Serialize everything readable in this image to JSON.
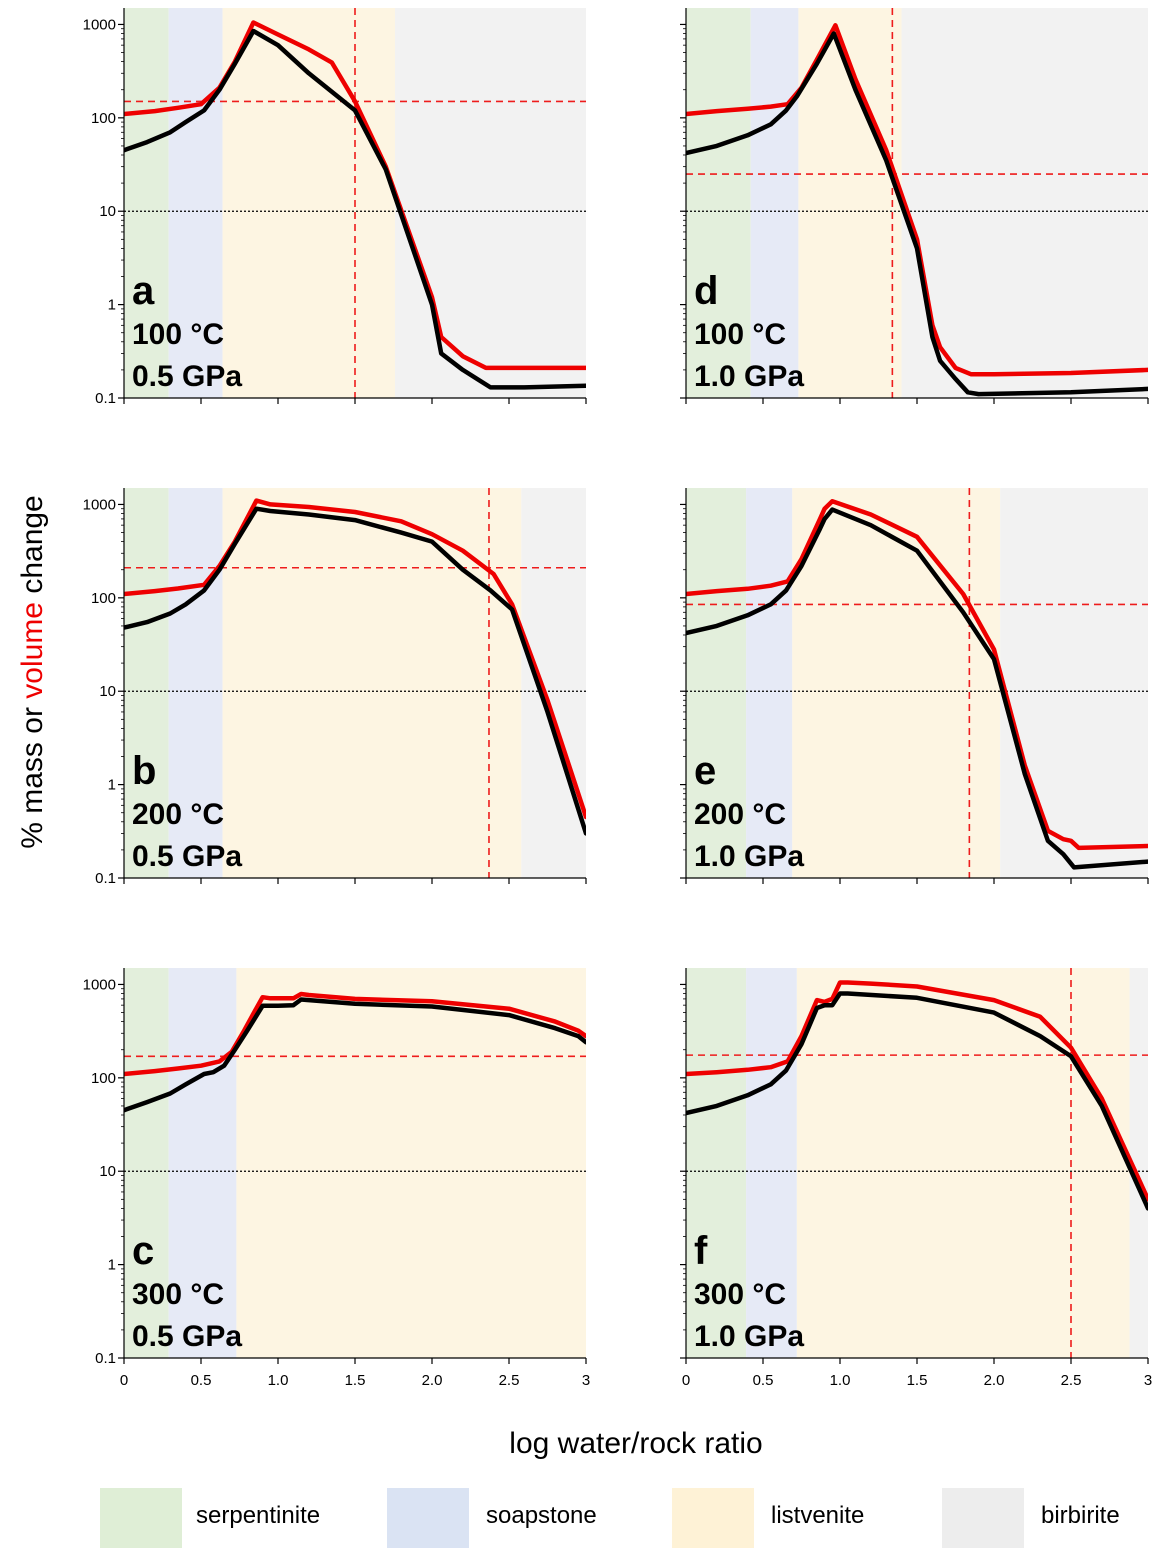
{
  "figure": {
    "y_axis_label": {
      "prefix": "% mass or ",
      "highlight": "volume",
      "suffix": " change"
    },
    "x_axis_label": "log water/rock ratio",
    "colors": {
      "mass": "#000000",
      "volume": "#ee0000",
      "serpentinite": "#e3efdc",
      "soapstone": "#e6eaf6",
      "listvenite": "#fdf5e2",
      "birbirite": "#f2f2f2"
    }
  },
  "legend": [
    {
      "key": "serpentinite",
      "label": "serpentinite",
      "color": "#dfeed6"
    },
    {
      "key": "soapstone",
      "label": "soapstone",
      "color": "#dae3f3"
    },
    {
      "key": "listvenite",
      "label": "listvenite",
      "color": "#fef2d6"
    },
    {
      "key": "birbirite",
      "label": "birbirite",
      "color": "#ededed"
    }
  ],
  "chart_data": [
    {
      "type": "line",
      "panel": "a",
      "temperature": "100 °C",
      "pressure": "0.5 GPa",
      "xlim": [
        0,
        3
      ],
      "ylim": [
        0.1,
        1500
      ],
      "yscale": "log",
      "x_ticks": [
        0,
        0.5,
        1.0,
        1.5,
        2.0,
        2.5,
        3
      ],
      "x_tick_labels_shown": false,
      "y_ticks": [
        0.1,
        1,
        10,
        100,
        1000
      ],
      "y_tick_labels": [
        "0.1",
        "1",
        "10",
        "100",
        "1000"
      ],
      "reference_line_y": 10,
      "zones": [
        {
          "name": "serpentinite",
          "from": 0,
          "to": 0.29
        },
        {
          "name": "soapstone",
          "from": 0.29,
          "to": 0.64
        },
        {
          "name": "listvenite",
          "from": 0.64,
          "to": 1.76
        },
        {
          "name": "birbirite",
          "from": 1.76,
          "to": 3
        }
      ],
      "crosshair": {
        "x": 1.5,
        "y": 150
      },
      "series": [
        {
          "key": "mass",
          "x": [
            0,
            0.15,
            0.3,
            0.4,
            0.52,
            0.62,
            0.72,
            0.84,
            1.0,
            1.2,
            1.5,
            1.7,
            2.0,
            2.06,
            2.2,
            2.38,
            2.6,
            3.0
          ],
          "y": [
            45,
            55,
            70,
            90,
            120,
            200,
            380,
            850,
            600,
            300,
            120,
            28,
            1.0,
            0.3,
            0.2,
            0.13,
            0.13,
            0.135
          ]
        },
        {
          "key": "volume",
          "x": [
            0,
            0.2,
            0.35,
            0.5,
            0.62,
            0.72,
            0.84,
            1.0,
            1.2,
            1.35,
            1.5,
            1.7,
            2.0,
            2.06,
            2.2,
            2.35,
            2.4,
            2.6,
            3.0
          ],
          "y": [
            110,
            118,
            128,
            140,
            210,
            400,
            1050,
            780,
            540,
            390,
            150,
            30,
            1.2,
            0.45,
            0.28,
            0.21,
            0.21,
            0.21,
            0.21
          ]
        }
      ]
    },
    {
      "type": "line",
      "panel": "b",
      "temperature": "200 °C",
      "pressure": "0.5 GPa",
      "xlim": [
        0,
        3
      ],
      "ylim": [
        0.1,
        1500
      ],
      "yscale": "log",
      "x_ticks": [
        0,
        0.5,
        1.0,
        1.5,
        2.0,
        2.5,
        3
      ],
      "x_tick_labels_shown": false,
      "y_ticks": [
        0.1,
        1,
        10,
        100,
        1000
      ],
      "y_tick_labels": [
        "0.1",
        "1",
        "10",
        "100",
        "1000"
      ],
      "reference_line_y": 10,
      "zones": [
        {
          "name": "serpentinite",
          "from": 0,
          "to": 0.29
        },
        {
          "name": "soapstone",
          "from": 0.29,
          "to": 0.64
        },
        {
          "name": "listvenite",
          "from": 0.64,
          "to": 2.58
        },
        {
          "name": "birbirite",
          "from": 2.58,
          "to": 3
        }
      ],
      "crosshair": {
        "x": 2.37,
        "y": 210
      },
      "series": [
        {
          "key": "mass",
          "x": [
            0,
            0.15,
            0.3,
            0.4,
            0.52,
            0.62,
            0.72,
            0.86,
            0.95,
            1.2,
            1.5,
            1.8,
            2.0,
            2.2,
            2.38,
            2.52,
            2.75,
            3.0
          ],
          "y": [
            48,
            55,
            68,
            85,
            120,
            200,
            380,
            900,
            850,
            780,
            680,
            500,
            400,
            200,
            120,
            75,
            6,
            0.3
          ]
        },
        {
          "key": "volume",
          "x": [
            0,
            0.2,
            0.35,
            0.52,
            0.62,
            0.72,
            0.86,
            0.95,
            1.2,
            1.5,
            1.8,
            2.0,
            2.2,
            2.4,
            2.52,
            2.75,
            3.0
          ],
          "y": [
            110,
            118,
            126,
            138,
            220,
            400,
            1100,
            1000,
            940,
            830,
            660,
            480,
            320,
            180,
            85,
            8,
            0.45
          ]
        }
      ]
    },
    {
      "type": "line",
      "panel": "c",
      "temperature": "300 °C",
      "pressure": "0.5 GPa",
      "xlim": [
        0,
        3
      ],
      "ylim": [
        0.1,
        1500
      ],
      "yscale": "log",
      "x_ticks": [
        0,
        0.5,
        1.0,
        1.5,
        2.0,
        2.5,
        3
      ],
      "x_tick_labels": [
        "0",
        "0.5",
        "1.0",
        "1.5",
        "2.0",
        "2.5",
        "3"
      ],
      "y_ticks": [
        0.1,
        1,
        10,
        100,
        1000
      ],
      "y_tick_labels": [
        "0.1",
        "1",
        "10",
        "100",
        "1000"
      ],
      "reference_line_y": 10,
      "zones": [
        {
          "name": "serpentinite",
          "from": 0,
          "to": 0.29
        },
        {
          "name": "soapstone",
          "from": 0.29,
          "to": 0.73
        },
        {
          "name": "listvenite",
          "from": 0.73,
          "to": 3
        }
      ],
      "crosshair": {
        "x": null,
        "y": 170
      },
      "series": [
        {
          "key": "mass",
          "x": [
            0,
            0.15,
            0.3,
            0.4,
            0.52,
            0.58,
            0.65,
            0.72,
            0.8,
            0.9,
            1.0,
            1.1,
            1.15,
            1.2,
            1.5,
            2.0,
            2.5,
            2.8,
            2.95,
            3.0
          ],
          "y": [
            45,
            55,
            68,
            85,
            110,
            115,
            135,
            200,
            320,
            590,
            590,
            600,
            690,
            680,
            620,
            580,
            470,
            340,
            280,
            240
          ]
        },
        {
          "key": "volume",
          "x": [
            0,
            0.2,
            0.35,
            0.5,
            0.62,
            0.7,
            0.78,
            0.85,
            0.9,
            0.95,
            1.1,
            1.15,
            1.2,
            1.5,
            2.0,
            2.5,
            2.8,
            2.95,
            3.0
          ],
          "y": [
            110,
            118,
            126,
            135,
            150,
            190,
            320,
            520,
            730,
            710,
            710,
            790,
            770,
            700,
            660,
            550,
            400,
            320,
            280
          ]
        }
      ]
    },
    {
      "type": "line",
      "panel": "d",
      "temperature": "100 °C",
      "pressure": "1.0 GPa",
      "xlim": [
        0,
        3
      ],
      "ylim": [
        0.1,
        1500
      ],
      "yscale": "log",
      "x_ticks": [
        0,
        0.5,
        1.0,
        1.5,
        2.0,
        2.5,
        3
      ],
      "x_tick_labels_shown": false,
      "y_ticks": [
        0.1,
        1,
        10,
        100,
        1000
      ],
      "y_tick_labels_shown": false,
      "reference_line_y": 10,
      "zones": [
        {
          "name": "serpentinite",
          "from": 0,
          "to": 0.42
        },
        {
          "name": "soapstone",
          "from": 0.42,
          "to": 0.73
        },
        {
          "name": "listvenite",
          "from": 0.73,
          "to": 1.4
        },
        {
          "name": "birbirite",
          "from": 1.4,
          "to": 3
        }
      ],
      "crosshair": {
        "x": 1.34,
        "y": 25
      },
      "series": [
        {
          "key": "mass",
          "x": [
            0,
            0.2,
            0.4,
            0.55,
            0.65,
            0.72,
            0.85,
            0.96,
            1.1,
            1.3,
            1.5,
            1.6,
            1.65,
            1.75,
            1.83,
            1.9,
            2.5,
            3.0
          ],
          "y": [
            42,
            50,
            65,
            85,
            120,
            170,
            380,
            800,
            200,
            35,
            4,
            0.45,
            0.25,
            0.16,
            0.115,
            0.11,
            0.115,
            0.125
          ]
        },
        {
          "key": "volume",
          "x": [
            0,
            0.2,
            0.4,
            0.55,
            0.66,
            0.75,
            0.86,
            0.97,
            1.1,
            1.3,
            1.5,
            1.6,
            1.65,
            1.75,
            1.85,
            2.0,
            2.5,
            3.0
          ],
          "y": [
            110,
            118,
            125,
            132,
            140,
            210,
            450,
            980,
            260,
            45,
            5,
            0.6,
            0.35,
            0.21,
            0.18,
            0.18,
            0.185,
            0.2
          ]
        }
      ]
    },
    {
      "type": "line",
      "panel": "e",
      "temperature": "200 °C",
      "pressure": "1.0 GPa",
      "xlim": [
        0,
        3
      ],
      "ylim": [
        0.1,
        1500
      ],
      "yscale": "log",
      "x_ticks": [
        0,
        0.5,
        1.0,
        1.5,
        2.0,
        2.5,
        3
      ],
      "x_tick_labels_shown": false,
      "y_ticks": [
        0.1,
        1,
        10,
        100,
        1000
      ],
      "y_tick_labels_shown": false,
      "reference_line_y": 10,
      "zones": [
        {
          "name": "serpentinite",
          "from": 0,
          "to": 0.39
        },
        {
          "name": "soapstone",
          "from": 0.39,
          "to": 0.69
        },
        {
          "name": "listvenite",
          "from": 0.69,
          "to": 2.04
        },
        {
          "name": "birbirite",
          "from": 2.04,
          "to": 3
        }
      ],
      "crosshair": {
        "x": 1.84,
        "y": 85
      },
      "series": [
        {
          "key": "mass",
          "x": [
            0,
            0.2,
            0.4,
            0.55,
            0.65,
            0.75,
            0.87,
            0.9,
            0.95,
            1.2,
            1.5,
            1.8,
            2.0,
            2.2,
            2.35,
            2.45,
            2.52,
            3.0
          ],
          "y": [
            42,
            50,
            65,
            85,
            120,
            220,
            550,
            700,
            880,
            600,
            320,
            70,
            22,
            1.3,
            0.25,
            0.18,
            0.13,
            0.15
          ]
        },
        {
          "key": "volume",
          "x": [
            0,
            0.2,
            0.4,
            0.55,
            0.66,
            0.75,
            0.87,
            0.9,
            0.95,
            1.2,
            1.5,
            1.8,
            2.0,
            2.2,
            2.35,
            2.45,
            2.5,
            2.55,
            3.0
          ],
          "y": [
            110,
            118,
            125,
            135,
            150,
            260,
            700,
            900,
            1080,
            780,
            450,
            110,
            28,
            1.6,
            0.32,
            0.26,
            0.25,
            0.21,
            0.22
          ]
        }
      ]
    },
    {
      "type": "line",
      "panel": "f",
      "temperature": "300 °C",
      "pressure": "1.0 GPa",
      "xlim": [
        0,
        3
      ],
      "ylim": [
        0.1,
        1500
      ],
      "yscale": "log",
      "x_ticks": [
        0,
        0.5,
        1.0,
        1.5,
        2.0,
        2.5,
        3
      ],
      "x_tick_labels": [
        "0",
        "0.5",
        "1.0",
        "1.5",
        "2.0",
        "2.5",
        "3"
      ],
      "y_ticks": [
        0.1,
        1,
        10,
        100,
        1000
      ],
      "y_tick_labels_shown": false,
      "reference_line_y": 10,
      "zones": [
        {
          "name": "serpentinite",
          "from": 0,
          "to": 0.39
        },
        {
          "name": "soapstone",
          "from": 0.39,
          "to": 0.72
        },
        {
          "name": "listvenite",
          "from": 0.72,
          "to": 2.88
        },
        {
          "name": "birbirite",
          "from": 2.88,
          "to": 3
        }
      ],
      "crosshair": {
        "x": 2.5,
        "y": 175
      },
      "series": [
        {
          "key": "mass",
          "x": [
            0,
            0.2,
            0.4,
            0.55,
            0.65,
            0.75,
            0.85,
            0.9,
            0.95,
            1.0,
            1.05,
            1.5,
            2.0,
            2.3,
            2.5,
            2.7,
            3.0
          ],
          "y": [
            42,
            50,
            65,
            85,
            120,
            230,
            560,
            600,
            600,
            800,
            800,
            720,
            500,
            280,
            170,
            50,
            4
          ]
        },
        {
          "key": "volume",
          "x": [
            0,
            0.2,
            0.4,
            0.55,
            0.66,
            0.75,
            0.85,
            0.9,
            0.95,
            1.0,
            1.05,
            1.2,
            1.5,
            2.0,
            2.3,
            2.5,
            2.7,
            3.0
          ],
          "y": [
            110,
            115,
            122,
            130,
            150,
            280,
            680,
            650,
            700,
            1050,
            1050,
            1020,
            950,
            680,
            450,
            210,
            60,
            5
          ]
        }
      ]
    }
  ]
}
